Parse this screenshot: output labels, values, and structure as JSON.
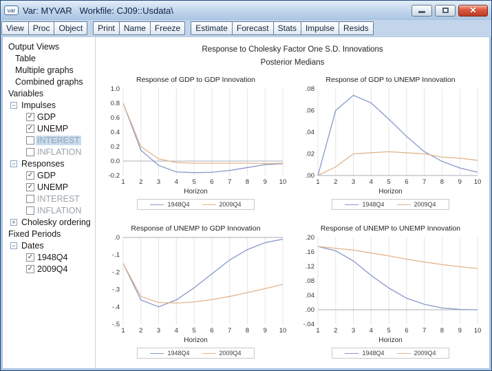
{
  "window": {
    "icon_label": "var",
    "title": "Var: MYVAR   Workfile: CJ09::Usdata\\",
    "controls": [
      "minimize",
      "maximize",
      "close"
    ]
  },
  "toolbar": {
    "groups": [
      [
        "View",
        "Proc",
        "Object"
      ],
      [
        "Print",
        "Name",
        "Freeze"
      ],
      [
        "Estimate",
        "Forecast",
        "Stats",
        "Impulse",
        "Resids"
      ]
    ]
  },
  "sidebar": {
    "items": [
      {
        "id": "output-views",
        "label": "Output Views",
        "depth": 0
      },
      {
        "id": "table",
        "label": "Table",
        "depth": 1
      },
      {
        "id": "multiple-graphs",
        "label": "Multiple graphs",
        "depth": 1
      },
      {
        "id": "combined-graphs",
        "label": "Combined graphs",
        "depth": 1
      },
      {
        "id": "variables",
        "label": "Variables",
        "depth": 0
      },
      {
        "id": "impulses",
        "label": "Impulses",
        "depth": 1,
        "expander": "minus"
      },
      {
        "id": "impulse-gdp",
        "label": "GDP",
        "depth": 2,
        "checkbox": true,
        "checked": true
      },
      {
        "id": "impulse-unemp",
        "label": "UNEMP",
        "depth": 2,
        "checkbox": true,
        "checked": true
      },
      {
        "id": "impulse-interest",
        "label": "INTEREST",
        "depth": 2,
        "checkbox": true,
        "checked": false,
        "disabled": true,
        "selected": true
      },
      {
        "id": "impulse-inflation",
        "label": "INFLATION",
        "depth": 2,
        "checkbox": true,
        "checked": false,
        "disabled": true
      },
      {
        "id": "responses",
        "label": "Responses",
        "depth": 1,
        "expander": "minus"
      },
      {
        "id": "response-gdp",
        "label": "GDP",
        "depth": 2,
        "checkbox": true,
        "checked": true
      },
      {
        "id": "response-unemp",
        "label": "UNEMP",
        "depth": 2,
        "checkbox": true,
        "checked": true
      },
      {
        "id": "response-interest",
        "label": "INTEREST",
        "depth": 2,
        "checkbox": true,
        "checked": false,
        "disabled": true
      },
      {
        "id": "response-inflation",
        "label": "INFLATION",
        "depth": 2,
        "checkbox": true,
        "checked": false,
        "disabled": true
      },
      {
        "id": "cholesky-ordering",
        "label": "Cholesky ordering",
        "depth": 1,
        "expander": "plus"
      },
      {
        "id": "fixed-periods",
        "label": "Fixed Periods",
        "depth": 0
      },
      {
        "id": "dates",
        "label": "Dates",
        "depth": 1,
        "expander": "minus"
      },
      {
        "id": "date-1948q4",
        "label": "1948Q4",
        "depth": 2,
        "checkbox": true,
        "checked": true
      },
      {
        "id": "date-2009q4",
        "label": "2009Q4",
        "depth": 2,
        "checkbox": true,
        "checked": true
      }
    ]
  },
  "main": {
    "heading_line1": "Response to Cholesky Factor One S.D. Innovations",
    "heading_line2": "Posterior Medians"
  },
  "colors": {
    "series_1948q4": "#8598c8",
    "series_2009q4": "#e2b48c",
    "tree_selection": "#c7ddf3",
    "close_button": "#c03a26"
  },
  "chart_data": [
    {
      "type": "line",
      "title": "Response of GDP to GDP Innovation",
      "x": [
        1,
        2,
        3,
        4,
        5,
        6,
        7,
        8,
        9,
        10
      ],
      "xlabel": "Horizon",
      "ylim": [
        -0.2,
        1.0
      ],
      "ytick_values": [
        1.0,
        0.8,
        0.6,
        0.4,
        0.2,
        0.0,
        -0.2
      ],
      "ytick_labels": [
        "1.0",
        "0.8",
        "0.6",
        "0.4",
        "0.2",
        "0.0",
        "-0.2"
      ],
      "grid": "vertical",
      "legend_position": "bottom",
      "series": [
        {
          "name": "1948Q4",
          "color": "#8598c8",
          "values": [
            0.8,
            0.15,
            -0.06,
            -0.15,
            -0.16,
            -0.155,
            -0.13,
            -0.09,
            -0.05,
            -0.035
          ]
        },
        {
          "name": "2009Q4",
          "color": "#e2b48c",
          "values": [
            0.8,
            0.2,
            0.03,
            -0.02,
            -0.03,
            -0.03,
            -0.03,
            -0.03,
            -0.035,
            -0.03
          ]
        }
      ]
    },
    {
      "type": "line",
      "title": "Response of GDP to UNEMP Innovation",
      "x": [
        1,
        2,
        3,
        4,
        5,
        6,
        7,
        8,
        9,
        10
      ],
      "xlabel": "Horizon",
      "ylim": [
        0.0,
        0.08
      ],
      "ytick_values": [
        0.08,
        0.06,
        0.04,
        0.02,
        0.0
      ],
      "ytick_labels": [
        ".08",
        ".06",
        ".04",
        ".02",
        ".00"
      ],
      "grid": "vertical",
      "legend_position": "bottom",
      "series": [
        {
          "name": "1948Q4",
          "color": "#8598c8",
          "values": [
            0.0,
            0.06,
            0.074,
            0.067,
            0.052,
            0.036,
            0.022,
            0.013,
            0.007,
            0.003
          ]
        },
        {
          "name": "2009Q4",
          "color": "#e2b48c",
          "values": [
            0.0,
            0.008,
            0.02,
            0.021,
            0.022,
            0.021,
            0.02,
            0.017,
            0.016,
            0.014
          ]
        }
      ]
    },
    {
      "type": "line",
      "title": "Response of UNEMP to GDP Innovation",
      "x": [
        1,
        2,
        3,
        4,
        5,
        6,
        7,
        8,
        9,
        10
      ],
      "xlabel": "Horizon",
      "ylim": [
        -0.5,
        0.0
      ],
      "ytick_values": [
        0.0,
        -0.1,
        -0.2,
        -0.3,
        -0.4,
        -0.5
      ],
      "ytick_labels": [
        ".0",
        "-.1",
        "-.2",
        "-.3",
        "-.4",
        "-.5"
      ],
      "grid": "vertical",
      "legend_position": "bottom",
      "series": [
        {
          "name": "1948Q4",
          "color": "#8598c8",
          "values": [
            -0.15,
            -0.36,
            -0.4,
            -0.36,
            -0.29,
            -0.21,
            -0.13,
            -0.07,
            -0.03,
            -0.01
          ]
        },
        {
          "name": "2009Q4",
          "color": "#e2b48c",
          "values": [
            -0.15,
            -0.34,
            -0.375,
            -0.378,
            -0.372,
            -0.358,
            -0.34,
            -0.318,
            -0.295,
            -0.27
          ]
        }
      ]
    },
    {
      "type": "line",
      "title": "Response of UNEMP to UNEMP Innovation",
      "x": [
        1,
        2,
        3,
        4,
        5,
        6,
        7,
        8,
        9,
        10
      ],
      "xlabel": "Horizon",
      "ylim": [
        -0.04,
        0.2
      ],
      "ytick_values": [
        0.2,
        0.16,
        0.12,
        0.08,
        0.04,
        0.0,
        -0.04
      ],
      "ytick_labels": [
        ".20",
        ".16",
        ".12",
        ".08",
        ".04",
        ".00",
        "-.04"
      ],
      "grid": "vertical",
      "legend_position": "bottom",
      "series": [
        {
          "name": "1948Q4",
          "color": "#8598c8",
          "values": [
            0.175,
            0.163,
            0.135,
            0.095,
            0.06,
            0.032,
            0.015,
            0.005,
            0.001,
            0.0
          ]
        },
        {
          "name": "2009Q4",
          "color": "#e2b48c",
          "values": [
            0.175,
            0.17,
            0.165,
            0.157,
            0.149,
            0.14,
            0.132,
            0.125,
            0.119,
            0.114
          ]
        }
      ]
    }
  ]
}
